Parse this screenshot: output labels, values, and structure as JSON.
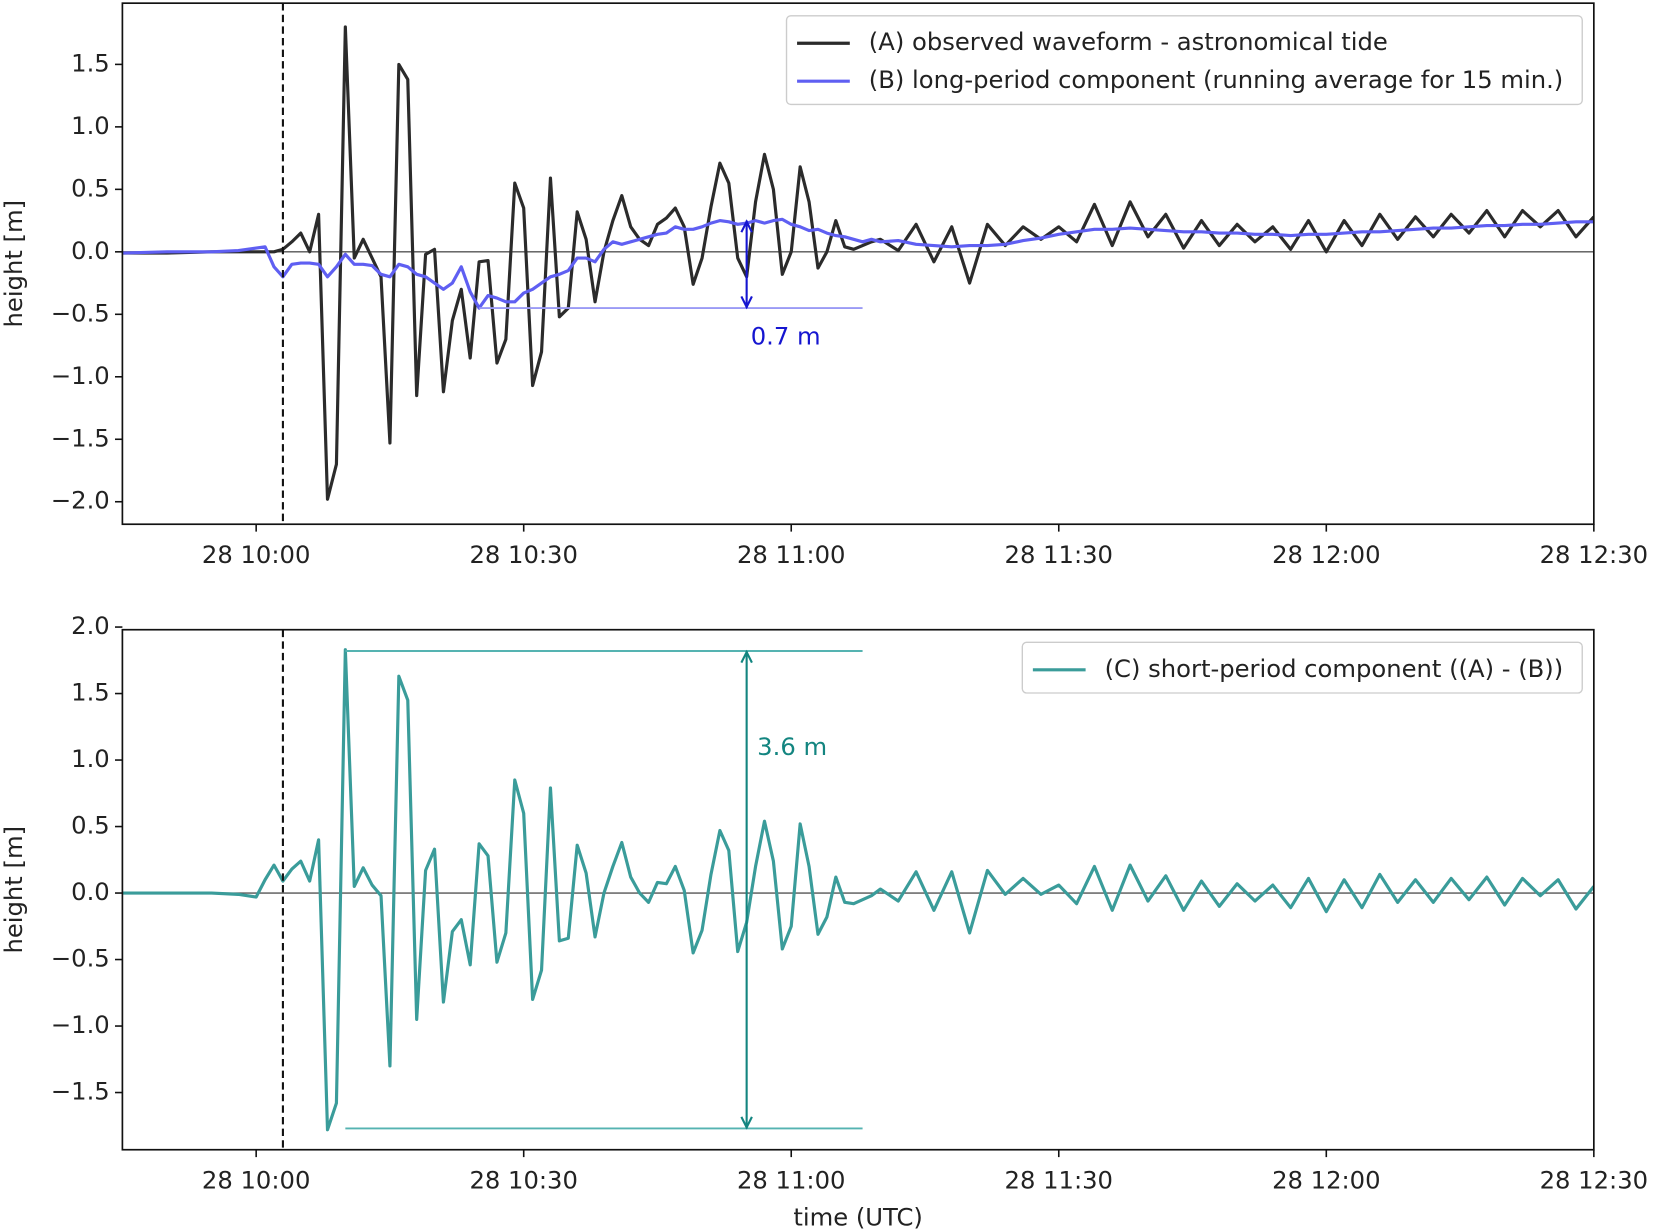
{
  "chart_data": [
    {
      "type": "line",
      "ylabel": "height [m]",
      "x": [
        "28 09:45",
        "28 09:50",
        "28 09:55",
        "28 09:58",
        "28 09:59",
        "28 10:00",
        "28 10:01",
        "28 10:02",
        "28 10:03",
        "28 10:04",
        "28 10:05",
        "28 10:06",
        "28 10:07",
        "28 10:08",
        "28 10:09",
        "28 10:10",
        "28 10:11",
        "28 10:12",
        "28 10:13",
        "28 10:14",
        "28 10:15",
        "28 10:16",
        "28 10:17",
        "28 10:18",
        "28 10:19",
        "28 10:20",
        "28 10:21",
        "28 10:22",
        "28 10:23",
        "28 10:24",
        "28 10:25",
        "28 10:26",
        "28 10:27",
        "28 10:28",
        "28 10:29",
        "28 10:30",
        "28 10:31",
        "28 10:32",
        "28 10:33",
        "28 10:34",
        "28 10:35",
        "28 10:36",
        "28 10:37",
        "28 10:38",
        "28 10:39",
        "28 10:40",
        "28 10:41",
        "28 10:42",
        "28 10:43",
        "28 10:44",
        "28 10:45",
        "28 10:46",
        "28 10:47",
        "28 10:48",
        "28 10:49",
        "28 10:50",
        "28 10:51",
        "28 10:52",
        "28 10:53",
        "28 10:54",
        "28 10:55",
        "28 10:56",
        "28 10:57",
        "28 10:58",
        "28 10:59",
        "28 11:00",
        "28 11:01",
        "28 11:02",
        "28 11:03",
        "28 11:04",
        "28 11:05",
        "28 11:06",
        "28 11:07",
        "28 11:08",
        "28 11:09",
        "28 11:10",
        "28 11:12",
        "28 11:14",
        "28 11:16",
        "28 11:18",
        "28 11:20",
        "28 11:22",
        "28 11:24",
        "28 11:26",
        "28 11:28",
        "28 11:30",
        "28 11:32",
        "28 11:34",
        "28 11:36",
        "28 11:38",
        "28 11:40",
        "28 11:42",
        "28 11:44",
        "28 11:46",
        "28 11:48",
        "28 11:50",
        "28 11:52",
        "28 11:54",
        "28 11:56",
        "28 11:58",
        "28 12:00",
        "28 12:02",
        "28 12:04",
        "28 12:06",
        "28 12:08",
        "28 12:10",
        "28 12:12",
        "28 12:14",
        "28 12:16",
        "28 12:18",
        "28 12:20",
        "28 12:22",
        "28 12:24",
        "28 12:26",
        "28 12:28",
        "28 12:30"
      ],
      "series": [
        {
          "name": "(A) observed waveform - astronomical tide",
          "color": "#2b2b2b",
          "values": [
            -0.01,
            -0.01,
            0,
            0,
            0,
            0,
            0,
            0,
            0.02,
            0.08,
            0.15,
            0,
            0.3,
            -1.98,
            -1.7,
            1.8,
            -0.05,
            0.1,
            -0.05,
            -0.2,
            -1.53,
            1.5,
            1.38,
            -1.15,
            -0.02,
            0.02,
            -1.12,
            -0.55,
            -0.3,
            -0.85,
            -0.08,
            -0.07,
            -0.89,
            -0.7,
            0.55,
            0.35,
            -1.07,
            -0.8,
            0.59,
            -0.52,
            -0.45,
            0.32,
            0.1,
            -0.4,
            0,
            0.25,
            0.45,
            0.2,
            0.1,
            0.05,
            0.22,
            0.27,
            0.35,
            0.2,
            -0.26,
            -0.05,
            0.36,
            0.71,
            0.55,
            -0.05,
            -0.2,
            0.4,
            0.78,
            0.5,
            -0.18,
            0,
            0.68,
            0.4,
            -0.13,
            0,
            0.25,
            0.04,
            0.02,
            0.05,
            0.08,
            0.1,
            0.01,
            0.22,
            -0.08,
            0.2,
            -0.25,
            0.22,
            0.05,
            0.2,
            0.1,
            0.2,
            0.08,
            0.38,
            0.05,
            0.4,
            0.12,
            0.3,
            0.03,
            0.25,
            0.05,
            0.22,
            0.08,
            0.2,
            0.02,
            0.25,
            0,
            0.25,
            0.05,
            0.3,
            0.1,
            0.28,
            0.12,
            0.3,
            0.15,
            0.33,
            0.12,
            0.33,
            0.2,
            0.33,
            0.12,
            0.28
          ]
        },
        {
          "name": "(B) long-period component (running average for 15 min.)",
          "color": "#5f5ff2",
          "values": [
            -0.01,
            0,
            0,
            0.01,
            0.02,
            0.03,
            0.04,
            -0.12,
            -0.2,
            -0.1,
            -0.09,
            -0.09,
            -0.1,
            -0.2,
            -0.12,
            -0.02,
            -0.1,
            -0.1,
            -0.11,
            -0.18,
            -0.2,
            -0.1,
            -0.12,
            -0.18,
            -0.2,
            -0.25,
            -0.3,
            -0.25,
            -0.12,
            -0.32,
            -0.45,
            -0.35,
            -0.37,
            -0.4,
            -0.4,
            -0.33,
            -0.3,
            -0.25,
            -0.2,
            -0.18,
            -0.15,
            -0.05,
            -0.05,
            -0.08,
            0.02,
            0.08,
            0.06,
            0.08,
            0.1,
            0.12,
            0.14,
            0.15,
            0.2,
            0.18,
            0.18,
            0.2,
            0.23,
            0.25,
            0.24,
            0.22,
            0.23,
            0.25,
            0.23,
            0.25,
            0.26,
            0.22,
            0.2,
            0.17,
            0.18,
            0.15,
            0.13,
            0.12,
            0.1,
            0.08,
            0.1,
            0.08,
            0.09,
            0.06,
            0.05,
            0.04,
            0.05,
            0.05,
            0.06,
            0.09,
            0.11,
            0.14,
            0.16,
            0.18,
            0.18,
            0.19,
            0.18,
            0.17,
            0.16,
            0.16,
            0.15,
            0.15,
            0.14,
            0.14,
            0.13,
            0.14,
            0.14,
            0.15,
            0.16,
            0.16,
            0.17,
            0.18,
            0.19,
            0.19,
            0.2,
            0.21,
            0.21,
            0.22,
            0.22,
            0.23,
            0.24,
            0.24
          ]
        }
      ],
      "xlim": [
        "28 09:45",
        "28 12:30"
      ],
      "xticks": [
        "28 10:00",
        "28 10:30",
        "28 11:00",
        "28 11:30",
        "28 12:00",
        "28 12:30"
      ],
      "ylim": [
        -2.18,
        1.99
      ],
      "yticks": [
        {
          "value": -2.0,
          "label": "−2.0"
        },
        {
          "value": -1.5,
          "label": "−1.5"
        },
        {
          "value": -1.0,
          "label": "−1.0"
        },
        {
          "value": -0.5,
          "label": "−0.5"
        },
        {
          "value": 0.0,
          "label": "0.0"
        },
        {
          "value": 0.5,
          "label": "0.5"
        },
        {
          "value": 1.0,
          "label": "1.0"
        },
        {
          "value": 1.5,
          "label": "1.5"
        }
      ],
      "axhline": 0,
      "vline": "28 10:03",
      "legend": "upper right",
      "reflines": [
        {
          "y": -0.45,
          "x": [
            "28 10:25",
            "28 11:08"
          ],
          "color": "#9a9af5"
        }
      ],
      "arrows": [
        {
          "x": "28 10:55",
          "y": [
            -0.45,
            0.25
          ],
          "label": "0.7 m",
          "color": "#1515d0"
        }
      ]
    },
    {
      "type": "line",
      "ylabel": "height [m]",
      "xlabel": "time (UTC)",
      "x": [
        "28 09:45",
        "28 09:50",
        "28 09:55",
        "28 09:58",
        "28 09:59",
        "28 10:00",
        "28 10:01",
        "28 10:02",
        "28 10:03",
        "28 10:04",
        "28 10:05",
        "28 10:06",
        "28 10:07",
        "28 10:08",
        "28 10:09",
        "28 10:10",
        "28 10:11",
        "28 10:12",
        "28 10:13",
        "28 10:14",
        "28 10:15",
        "28 10:16",
        "28 10:17",
        "28 10:18",
        "28 10:19",
        "28 10:20",
        "28 10:21",
        "28 10:22",
        "28 10:23",
        "28 10:24",
        "28 10:25",
        "28 10:26",
        "28 10:27",
        "28 10:28",
        "28 10:29",
        "28 10:30",
        "28 10:31",
        "28 10:32",
        "28 10:33",
        "28 10:34",
        "28 10:35",
        "28 10:36",
        "28 10:37",
        "28 10:38",
        "28 10:39",
        "28 10:40",
        "28 10:41",
        "28 10:42",
        "28 10:43",
        "28 10:44",
        "28 10:45",
        "28 10:46",
        "28 10:47",
        "28 10:48",
        "28 10:49",
        "28 10:50",
        "28 10:51",
        "28 10:52",
        "28 10:53",
        "28 10:54",
        "28 10:55",
        "28 10:56",
        "28 10:57",
        "28 10:58",
        "28 10:59",
        "28 11:00",
        "28 11:01",
        "28 11:02",
        "28 11:03",
        "28 11:04",
        "28 11:05",
        "28 11:06",
        "28 11:07",
        "28 11:08",
        "28 11:09",
        "28 11:10",
        "28 11:12",
        "28 11:14",
        "28 11:16",
        "28 11:18",
        "28 11:20",
        "28 11:22",
        "28 11:24",
        "28 11:26",
        "28 11:28",
        "28 11:30",
        "28 11:32",
        "28 11:34",
        "28 11:36",
        "28 11:38",
        "28 11:40",
        "28 11:42",
        "28 11:44",
        "28 11:46",
        "28 11:48",
        "28 11:50",
        "28 11:52",
        "28 11:54",
        "28 11:56",
        "28 11:58",
        "28 12:00",
        "28 12:02",
        "28 12:04",
        "28 12:06",
        "28 12:08",
        "28 12:10",
        "28 12:12",
        "28 12:14",
        "28 12:16",
        "28 12:18",
        "28 12:20",
        "28 12:22",
        "28 12:24",
        "28 12:26",
        "28 12:28",
        "28 12:30"
      ],
      "series": [
        {
          "name": "(C) short-period component ((A) - (B))",
          "color": "#3a9c9a",
          "values": [
            0,
            0,
            0,
            -0.01,
            -0.02,
            -0.03,
            0.1,
            0.21,
            0.09,
            0.18,
            0.24,
            0.09,
            0.4,
            -1.78,
            -1.58,
            1.83,
            0.05,
            0.19,
            0.06,
            -0.02,
            -1.3,
            1.63,
            1.45,
            -0.95,
            0.17,
            0.33,
            -0.82,
            -0.29,
            -0.2,
            -0.54,
            0.37,
            0.28,
            -0.52,
            -0.3,
            0.85,
            0.6,
            -0.8,
            -0.58,
            0.79,
            -0.36,
            -0.34,
            0.36,
            0.15,
            -0.33,
            0,
            0.2,
            0.38,
            0.12,
            0,
            -0.07,
            0.08,
            0.07,
            0.2,
            0.02,
            -0.45,
            -0.28,
            0.14,
            0.47,
            0.32,
            -0.44,
            -0.22,
            0.2,
            0.54,
            0.24,
            -0.42,
            -0.25,
            0.52,
            0.2,
            -0.31,
            -0.18,
            0.12,
            -0.07,
            -0.08,
            -0.05,
            -0.02,
            0.03,
            -0.06,
            0.16,
            -0.13,
            0.16,
            -0.3,
            0.17,
            -0.01,
            0.11,
            -0.01,
            0.06,
            -0.08,
            0.2,
            -0.13,
            0.21,
            -0.06,
            0.13,
            -0.13,
            0.09,
            -0.1,
            0.07,
            -0.06,
            0.06,
            -0.11,
            0.11,
            -0.14,
            0.1,
            -0.11,
            0.14,
            -0.07,
            0.1,
            -0.07,
            0.11,
            -0.05,
            0.12,
            -0.09,
            0.11,
            -0.02,
            0.1,
            -0.12,
            0.05
          ]
        }
      ],
      "xlim": [
        "28 09:45",
        "28 12:30"
      ],
      "xticks": [
        "28 10:00",
        "28 10:30",
        "28 11:00",
        "28 11:30",
        "28 12:00",
        "28 12:30"
      ],
      "ylim": [
        -1.93,
        1.98
      ],
      "yticks": [
        {
          "value": -1.5,
          "label": "−1.5"
        },
        {
          "value": -1.0,
          "label": "−1.0"
        },
        {
          "value": -0.5,
          "label": "−0.5"
        },
        {
          "value": 0.0,
          "label": "0.0"
        },
        {
          "value": 0.5,
          "label": "0.5"
        },
        {
          "value": 1.0,
          "label": "1.0"
        },
        {
          "value": 1.5,
          "label": "1.5"
        },
        {
          "value": 2.0,
          "label": "2.0"
        }
      ],
      "axhline": 0,
      "vline": "28 10:03",
      "legend": "upper right",
      "reflines": [
        {
          "y": 1.82,
          "x": [
            "28 10:10",
            "28 11:08"
          ],
          "color": "#55b3b1"
        },
        {
          "y": -1.77,
          "x": [
            "28 10:10",
            "28 11:08"
          ],
          "color": "#55b3b1"
        }
      ],
      "arrows": [
        {
          "x": "28 10:55",
          "y": [
            -1.77,
            1.82
          ],
          "label": "3.6 m",
          "color": "#138580"
        }
      ]
    }
  ]
}
